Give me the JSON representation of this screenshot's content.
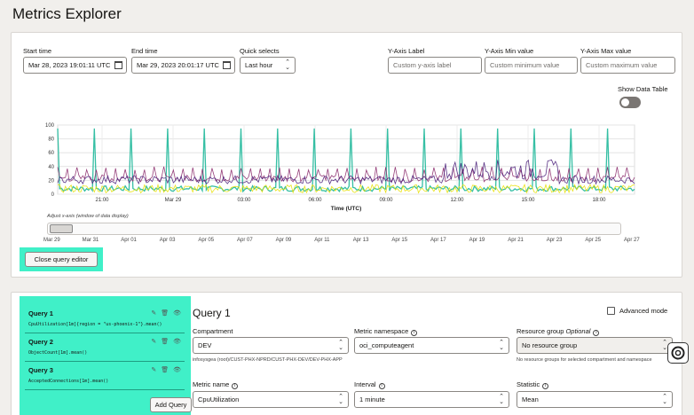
{
  "page": {
    "title": "Metrics Explorer"
  },
  "time": {
    "start_label": "Start time",
    "start_value": "Mar 28, 2023 19:01:11 UTC",
    "end_label": "End time",
    "end_value": "Mar 29, 2023 20:01:17 UTC",
    "quick_label": "Quick selects",
    "quick_value": "Last hour"
  },
  "yaxis": {
    "label_label": "Y-Axis Label",
    "label_placeholder": "Custom y-axis label",
    "min_label": "Y-Axis Min value",
    "min_placeholder": "Custom minimum value",
    "max_label": "Y-Axis Max value",
    "max_placeholder": "Custom maximum value"
  },
  "data_table": {
    "label": "Show Data Table",
    "enabled": false
  },
  "chart_data": {
    "type": "line",
    "xlabel": "Time (UTC)",
    "ylim": [
      0,
      100
    ],
    "yticks": [
      "0",
      "20",
      "40",
      "60",
      "80",
      "100"
    ],
    "xticks": [
      "21:00",
      "Mar 29",
      "03:00",
      "06:00",
      "09:00",
      "12:00",
      "15:00",
      "18:00"
    ],
    "grid": true,
    "series": [
      {
        "color": "#1fb89a"
      },
      {
        "color": "#8b2a6b"
      },
      {
        "color": "#e8e000"
      },
      {
        "color": "#4a1f7a"
      }
    ]
  },
  "slider": {
    "caption": "Adjust x-axis (window of data display)",
    "ticks": [
      "Mar 29",
      "Mar 31",
      "Apr 01",
      "Apr 03",
      "Apr 05",
      "Apr 07",
      "Apr 09",
      "Apr 11",
      "Apr 13",
      "Apr 15",
      "Apr 17",
      "Apr 19",
      "Apr 21",
      "Apr 23",
      "Apr 25",
      "Apr 27"
    ]
  },
  "close_editor_label": "Close query editor",
  "queries": [
    {
      "title": "Query 1",
      "expr": "CpuUtilization[1m]{region = \"us-phoenix-1\"}.mean()"
    },
    {
      "title": "Query 2",
      "expr": "ObjectCount[1m].mean()"
    },
    {
      "title": "Query 3",
      "expr": "AcceptedConnections[1m].mean()"
    }
  ],
  "add_query_label": "Add Query",
  "editor": {
    "title": "Query 1",
    "advanced_label": "Advanced mode",
    "compartment_label": "Compartment",
    "compartment_value": "DEV",
    "compartment_path": "infosysgea (root)/CUST-PHX-NPRD/CUST-PHX-DEV/DEV-PHX-APP",
    "namespace_label": "Metric namespace",
    "namespace_value": "oci_computeagent",
    "resource_group_label": "Resource group",
    "resource_group_optional": "Optional",
    "resource_group_value": "No resource group",
    "resource_group_note": "No resource groups for selected compartment and namespace",
    "metric_label": "Metric name",
    "metric_value": "CpuUtilization",
    "interval_label": "Interval",
    "interval_value": "1 minute",
    "statistic_label": "Statistic",
    "statistic_value": "Mean"
  }
}
